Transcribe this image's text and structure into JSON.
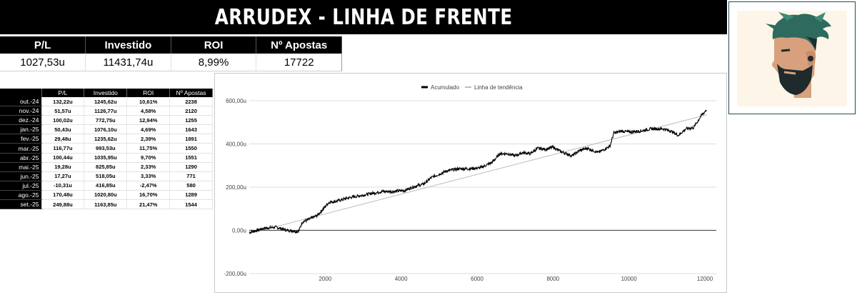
{
  "title": "ARRUDEX - LINHA DE FRENTE",
  "summary": {
    "headers": [
      "P/L",
      "Investido",
      "ROI",
      "Nº Apostas"
    ],
    "values": [
      "1027,53u",
      "11431,74u",
      "8,99%",
      "17722"
    ]
  },
  "monthly": {
    "headers": [
      "",
      "P/L",
      "Investido",
      "ROI",
      "Nº Apostas"
    ],
    "rows": [
      [
        "out.-24",
        "132,22u",
        "1245,62u",
        "10,61%",
        "2238"
      ],
      [
        "nov.-24",
        "51,57u",
        "1126,77u",
        "4,58%",
        "2120"
      ],
      [
        "dez.-24",
        "100,02u",
        "772,75u",
        "12,94%",
        "1255"
      ],
      [
        "jan.-25",
        "50,43u",
        "1076,10u",
        "4,69%",
        "1643"
      ],
      [
        "fev.-25",
        "29,48u",
        "1235,62u",
        "2,39%",
        "1891"
      ],
      [
        "mar.-25",
        "116,77u",
        "993,53u",
        "11,75%",
        "1550"
      ],
      [
        "abr.-25",
        "100,44u",
        "1035,95u",
        "9,70%",
        "1551"
      ],
      [
        "mai.-25",
        "19,28u",
        "825,85u",
        "2,33%",
        "1290"
      ],
      [
        "jun.-25",
        "17,27u",
        "518,05u",
        "3,33%",
        "771"
      ],
      [
        "jul.-25",
        "-10,31u",
        "416,85u",
        "-2,47%",
        "580"
      ],
      [
        "ago.-25",
        "170,48u",
        "1020,80u",
        "16,70%",
        "1289"
      ],
      [
        "set.-25",
        "249,88u",
        "1163,85u",
        "21,47%",
        "1544"
      ]
    ]
  },
  "chart_data": {
    "type": "line",
    "legend": [
      "Acumulado",
      "Linha de tendência"
    ],
    "legend_position": "top",
    "x_ticks": [
      2000,
      4000,
      6000,
      8000,
      10000,
      12000
    ],
    "y_ticks": [
      600,
      400,
      200,
      0,
      -200
    ],
    "y_tick_labels": [
      "600,00u",
      "400,00u",
      "200,00u",
      "0,00u",
      "-200,00u"
    ],
    "xlim": [
      0,
      12300
    ],
    "ylim": [
      -200,
      600
    ],
    "grid": true,
    "series": [
      {
        "name": "Acumulado",
        "color": "#000000",
        "x": [
          0,
          400,
          700,
          1000,
          1300,
          1400,
          1500,
          1800,
          2100,
          2300,
          2600,
          2900,
          3200,
          3500,
          3800,
          4100,
          4300,
          4600,
          4800,
          5200,
          5500,
          5800,
          6100,
          6400,
          6600,
          6800,
          7000,
          7200,
          7400,
          7600,
          7800,
          8000,
          8200,
          8500,
          8700,
          8900,
          9200,
          9500,
          9600,
          9800,
          10000,
          10300,
          10600,
          10900,
          11100,
          11300,
          11500,
          11700,
          11900,
          12050
        ],
        "y": [
          -10,
          10,
          15,
          0,
          -5,
          40,
          45,
          70,
          130,
          135,
          150,
          160,
          170,
          180,
          180,
          185,
          200,
          215,
          245,
          275,
          285,
          285,
          290,
          315,
          355,
          355,
          345,
          360,
          355,
          380,
          375,
          385,
          365,
          345,
          370,
          380,
          360,
          390,
          450,
          460,
          455,
          460,
          470,
          470,
          460,
          440,
          470,
          475,
          530,
          560
        ]
      },
      {
        "name": "Linha de tendência",
        "color": "#bbbbbb",
        "x": [
          0,
          12050
        ],
        "y": [
          -15,
          535
        ]
      }
    ]
  },
  "avatar": {
    "hair_color": "#2e6b5e",
    "beard_color": "#1e2a2c",
    "skin_color": "#d8a07c"
  }
}
